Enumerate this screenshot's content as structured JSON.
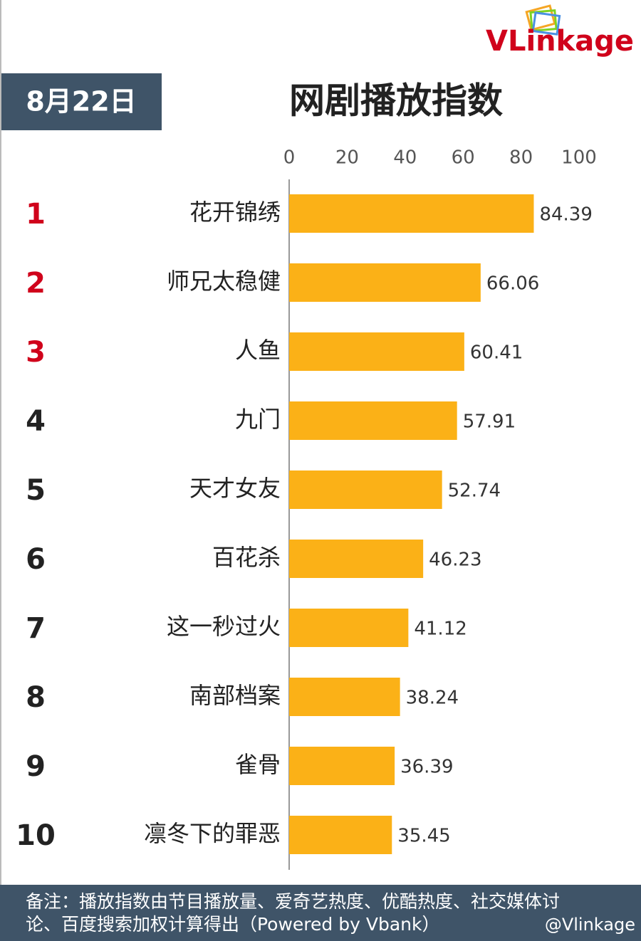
{
  "header": {
    "date": "8月22日",
    "logo": "VLinkage"
  },
  "chart_data": {
    "type": "bar",
    "orientation": "horizontal",
    "title": "网剧播放指数",
    "ranks": [
      1,
      2,
      3,
      4,
      5,
      6,
      7,
      8,
      9,
      10
    ],
    "rank_colors": [
      "#d0021b",
      "#d0021b",
      "#d0021b",
      "#222222",
      "#222222",
      "#222222",
      "#222222",
      "#222222",
      "#222222",
      "#222222"
    ],
    "categories": [
      "花开锦绣",
      "师兄太稳健",
      "人鱼",
      "九门",
      "天才女友",
      "百花杀",
      "这一秒过火",
      "南部档案",
      "雀骨",
      "凛冬下的罪恶"
    ],
    "values": [
      84.39,
      66.06,
      60.41,
      57.91,
      52.74,
      46.23,
      41.12,
      38.24,
      36.39,
      35.45
    ],
    "color": "#fbb117",
    "xlim": [
      0,
      100
    ],
    "xticks": [
      0,
      20,
      40,
      60,
      80,
      100
    ]
  },
  "footer": {
    "note": [
      "备注：播放指数由节目播放量、爱奇艺热度、优酷热度、社交媒体讨",
      "论、百度搜索加权计算得出（Powered by Vbank）"
    ],
    "watermark": "@Vlinkage"
  }
}
